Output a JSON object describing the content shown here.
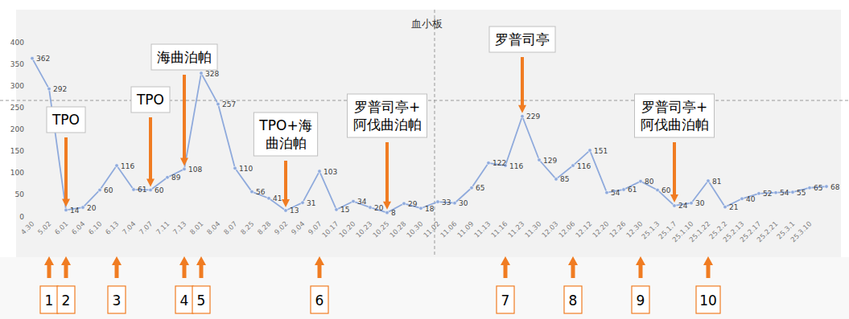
{
  "chart_data": {
    "type": "line",
    "title": "血小板",
    "categories": [
      "4.30",
      "5.02",
      "6.01",
      "6.04",
      "6.10",
      "6.13",
      "7.04",
      "7.07",
      "7.11",
      "7.13",
      "8.01",
      "8.04",
      "8.07",
      "8.25",
      "8.28",
      "9.02",
      "9.04",
      "9.07",
      "10.17",
      "10.20",
      "10.23",
      "10.25",
      "10.28",
      "10.30",
      "11.02",
      "11.06",
      "11.09",
      "11.13",
      "11.16",
      "11.23",
      "11.30",
      "12.03",
      "12.06",
      "12.12",
      "12.20",
      "12.26",
      "12.30",
      "25.1.3",
      "25.1.7",
      "25.1.10",
      "25.1.22",
      "25.2.2",
      "25.2.13",
      "25.2.17",
      "25.2.21",
      "25.3.1",
      "25.3.10",
      null
    ],
    "values": [
      362,
      292,
      14,
      20,
      60,
      116,
      61,
      60,
      89,
      108,
      328,
      257,
      110,
      56,
      41,
      13,
      31,
      103,
      15,
      34,
      20,
      8,
      29,
      18,
      33,
      30,
      65,
      122,
      116,
      229,
      129,
      85,
      116,
      151,
      54,
      61,
      80,
      60,
      24,
      30,
      81,
      21,
      40,
      52,
      54,
      55,
      65,
      68
    ],
    "color": "#8faadc",
    "ylim": [
      0,
      400
    ],
    "yticks": [
      0,
      50,
      100,
      150,
      200,
      250,
      300,
      350,
      400
    ],
    "grid": false,
    "data_labels": true,
    "marker": "circle",
    "annotations": [
      {
        "lines": [
          "TPO"
        ],
        "at": "6.01"
      },
      {
        "lines": [
          "TPO"
        ],
        "at": "7.07"
      },
      {
        "lines": [
          "海曲泊帕"
        ],
        "at": "7.13"
      },
      {
        "lines": [
          "TPO+海",
          "曲泊帕"
        ],
        "at": "9.02"
      },
      {
        "lines": [
          "罗普司亭+",
          "阿伐曲泊帕"
        ],
        "at": "10.25"
      },
      {
        "lines": [
          "罗普司亭"
        ],
        "at": "11.23"
      },
      {
        "lines": [
          "罗普司亭+",
          "阿伐曲泊帕"
        ],
        "at": "25.1.7"
      }
    ],
    "events": [
      {
        "label": "1",
        "at": "5.02"
      },
      {
        "label": "2",
        "at": "6.01"
      },
      {
        "label": "3",
        "at": "6.13"
      },
      {
        "label": "4",
        "at": "7.13"
      },
      {
        "label": "5",
        "at": "8.01"
      },
      {
        "label": "6",
        "at": "9.07"
      },
      {
        "label": "7",
        "at": "11.16"
      },
      {
        "label": "8",
        "at": "12.06"
      },
      {
        "label": "9",
        "at": "12.30"
      },
      {
        "label": "10",
        "at": "25.1.22"
      }
    ]
  }
}
